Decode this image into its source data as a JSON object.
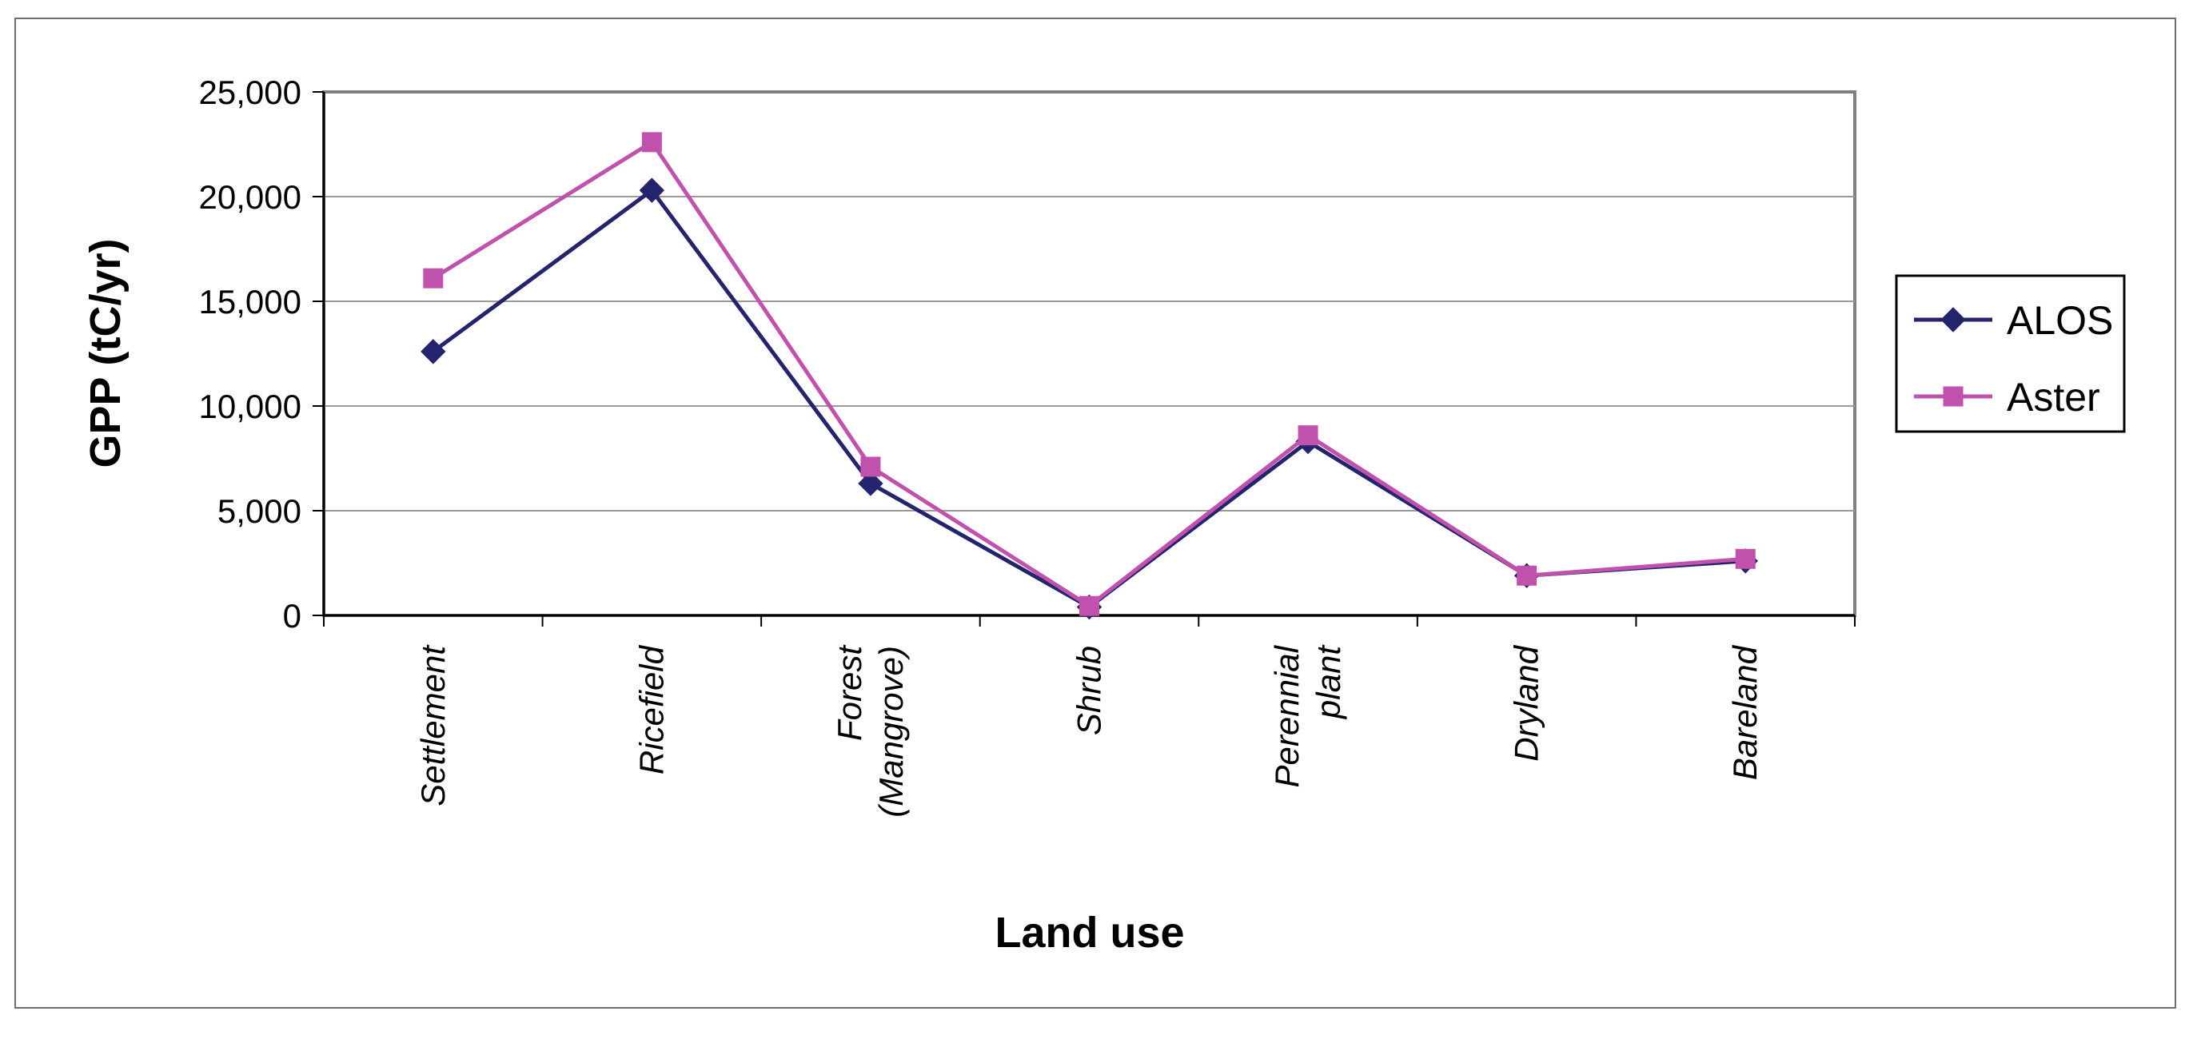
{
  "chart_data": {
    "type": "line",
    "title": "",
    "xlabel": "Land use",
    "ylabel": "GPP (tC/yr)",
    "ylim": [
      0,
      25000
    ],
    "ytick_step": 5000,
    "yticks": [
      "0",
      "5,000",
      "10,000",
      "15,000",
      "20,000",
      "25,000"
    ],
    "categories": [
      [
        "Settlement"
      ],
      [
        "Ricefield"
      ],
      [
        "Forest",
        "(Mangrove)"
      ],
      [
        "Shrub"
      ],
      [
        "Perennial",
        "plant"
      ],
      [
        "Dryland"
      ],
      [
        "Bareland"
      ]
    ],
    "series": [
      {
        "name": "ALOS",
        "marker": "diamond",
        "color": "#24246e",
        "values": [
          12600,
          20300,
          6300,
          400,
          8300,
          1900,
          2600
        ]
      },
      {
        "name": "Aster",
        "marker": "square",
        "color": "#c052ae",
        "values": [
          16100,
          22600,
          7100,
          450,
          8600,
          1900,
          2700
        ]
      }
    ],
    "grid": true,
    "legend_position": "right"
  }
}
